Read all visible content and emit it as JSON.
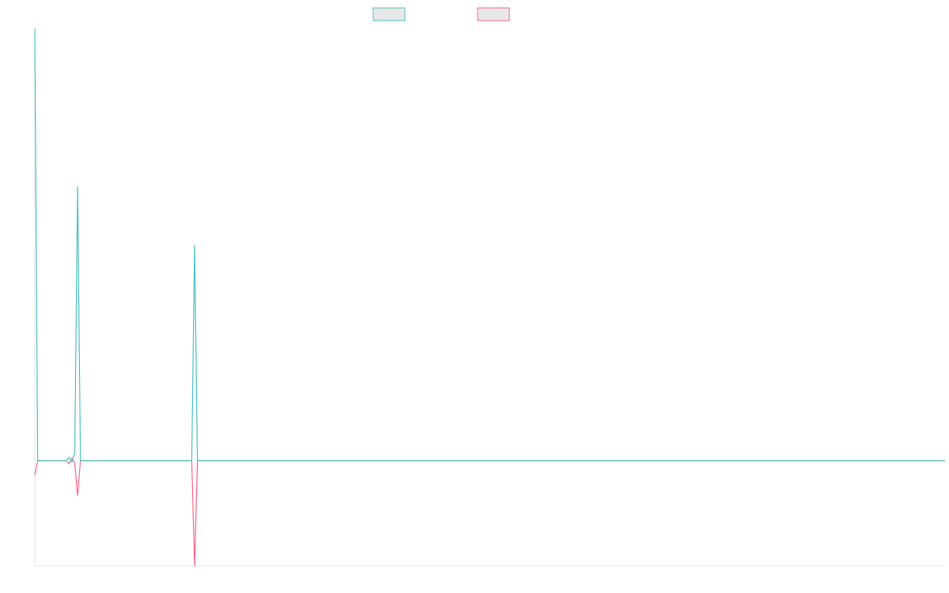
{
  "chart_data": {
    "type": "line",
    "x": [
      0,
      1,
      11,
      12,
      13,
      14,
      15,
      16,
      55,
      56,
      57,
      319
    ],
    "series": [
      {
        "color": "#4bc0c0",
        "values": [
          82,
          0,
          0,
          0.6,
          -0.3,
          1.6,
          52,
          0,
          0,
          41,
          0,
          0
        ]
      },
      {
        "color": "#ff6384",
        "values": [
          -2.8,
          0,
          0,
          -0.6,
          0.5,
          -0.4,
          -6.7,
          0,
          0,
          -20,
          0,
          0
        ]
      }
    ],
    "xlim": [
      0,
      319
    ],
    "ylim": [
      -20,
      82
    ],
    "grid": false,
    "legend": "top"
  }
}
